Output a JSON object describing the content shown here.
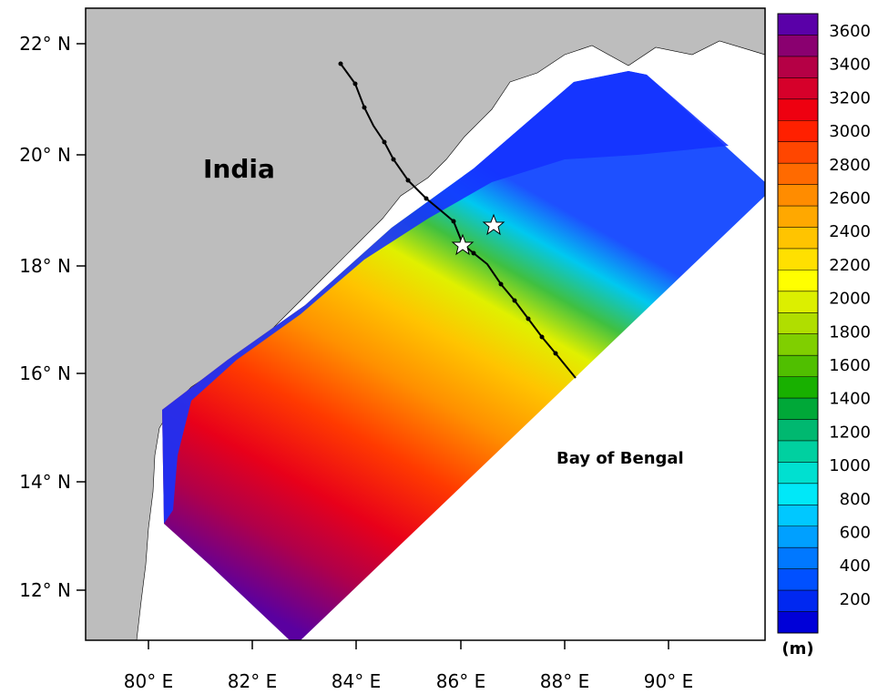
{
  "map": {
    "country_label": "India",
    "sea_label": "Bay of Bengal",
    "lat_labels": [
      "22° N",
      "20° N",
      "18° N",
      "16° N",
      "14° N",
      "12° N"
    ],
    "lon_labels": [
      "80° E",
      "82° E",
      "84° E",
      "86° E",
      "88° E",
      "90° E"
    ],
    "colorbar": {
      "unit": "(m)",
      "tick_labels": [
        "3600",
        "3400",
        "3200",
        "3000",
        "2800",
        "2600",
        "2400",
        "2200",
        "2000",
        "1800",
        "1600",
        "1400",
        "1200",
        "1000",
        "800",
        "600",
        "400",
        "200"
      ]
    },
    "legend_colors": [
      "#5a00a8",
      "#8a0070",
      "#b50045",
      "#d6002a",
      "#ee0010",
      "#ff2000",
      "#ff4600",
      "#ff6a00",
      "#ff8c00",
      "#ffa800",
      "#ffc400",
      "#ffe000",
      "#ffff00",
      "#dcef00",
      "#b0de00",
      "#80cf00",
      "#50bf00",
      "#18b000",
      "#00a838",
      "#00b870",
      "#00d0a0",
      "#00e0d0",
      "#00e8f8",
      "#00c8ff",
      "#00a0ff",
      "#0078ff",
      "#0050ff",
      "#0028f0",
      "#0000d8"
    ],
    "colors": {
      "land": "#bdbdbd",
      "sea": "#ffffff",
      "track": "#000000"
    }
  }
}
